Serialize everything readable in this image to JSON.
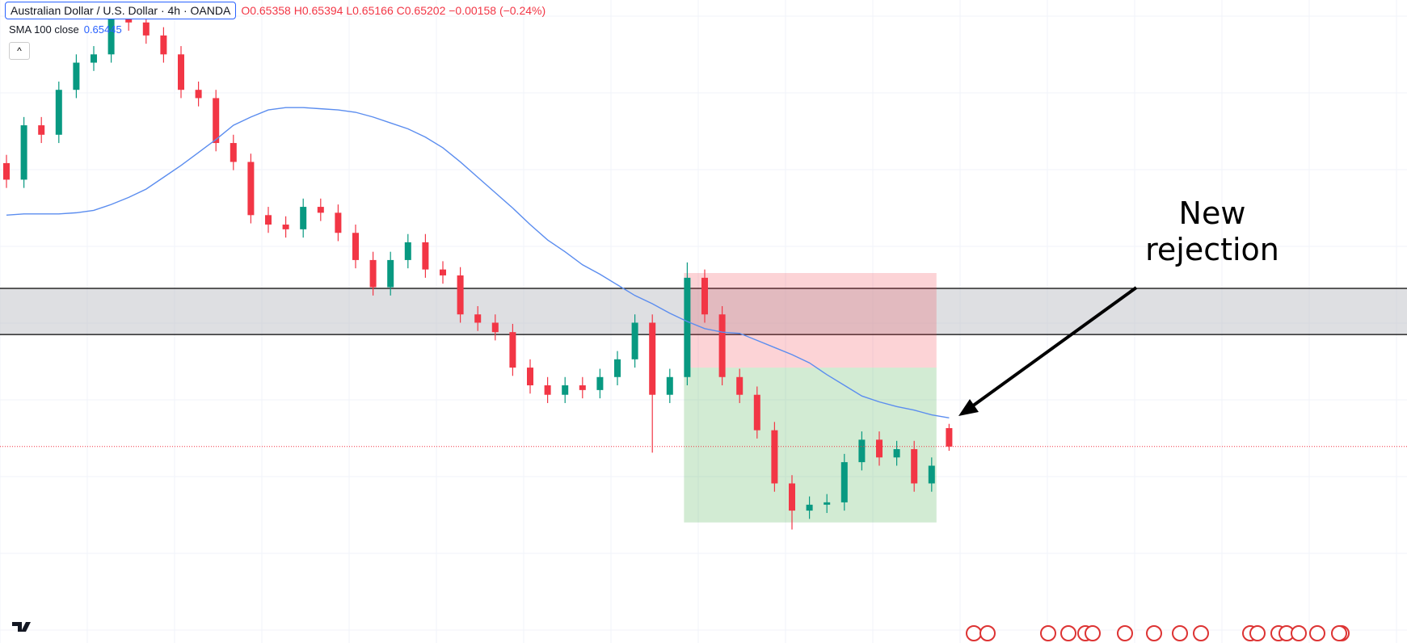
{
  "chart_data": {
    "type": "candlestick",
    "header": {
      "symbol": "Australian Dollar / U.S. Dollar · 4h · OANDA",
      "ohlc_labels": [
        "O",
        "H",
        "L",
        "C"
      ],
      "change": "−0.00158",
      "change_pct": "(−0.24%)",
      "indicator": "SMA 100 close"
    },
    "ylim": [
      0.6354,
      0.6898
    ],
    "up_color": "#089981",
    "down_color": "#f23645",
    "open": [
      0.676,
      0.6746,
      0.6792,
      0.6784,
      0.6822,
      0.6845,
      0.6852,
      0.6883,
      0.6879,
      0.6868,
      0.6852,
      0.6822,
      0.6815,
      0.6777,
      0.6761,
      0.6716,
      0.6708,
      0.6704,
      0.6723,
      0.6718,
      0.6701,
      0.6678,
      0.6655,
      0.6678,
      0.6693,
      0.667,
      0.6665,
      0.6632,
      0.6625,
      0.6617,
      0.6587,
      0.6572,
      0.6564,
      0.6572,
      0.6568,
      0.6579,
      0.6594,
      0.6625,
      0.6564,
      0.6579,
      0.6663,
      0.6632,
      0.6579,
      0.6564,
      0.6534,
      0.6489,
      0.6466,
      0.6471,
      0.6473,
      0.6507,
      0.6526,
      0.6511,
      0.6518,
      0.6489,
      0.65358
    ],
    "high": [
      0.6767,
      0.6799,
      0.6799,
      0.6829,
      0.6852,
      0.6859,
      0.689,
      0.689,
      0.6886,
      0.6875,
      0.6859,
      0.6829,
      0.6822,
      0.6784,
      0.6768,
      0.6723,
      0.6715,
      0.673,
      0.673,
      0.6725,
      0.6708,
      0.6685,
      0.6685,
      0.67,
      0.67,
      0.6677,
      0.6672,
      0.6639,
      0.6632,
      0.6624,
      0.6594,
      0.6579,
      0.6579,
      0.6579,
      0.6586,
      0.6601,
      0.6632,
      0.6632,
      0.6586,
      0.6676,
      0.667,
      0.6639,
      0.6586,
      0.6571,
      0.6541,
      0.6496,
      0.6478,
      0.648,
      0.6514,
      0.6533,
      0.6533,
      0.6525,
      0.6525,
      0.6511,
      0.65394
    ],
    "low": [
      0.6739,
      0.6739,
      0.6777,
      0.6777,
      0.6815,
      0.6838,
      0.6845,
      0.6872,
      0.6861,
      0.6845,
      0.6815,
      0.6808,
      0.677,
      0.6754,
      0.6709,
      0.6701,
      0.6697,
      0.6697,
      0.6711,
      0.6694,
      0.6671,
      0.6648,
      0.6648,
      0.6671,
      0.6663,
      0.6658,
      0.6625,
      0.6618,
      0.661,
      0.658,
      0.6565,
      0.6557,
      0.6557,
      0.6561,
      0.6561,
      0.6572,
      0.6587,
      0.6515,
      0.6557,
      0.6572,
      0.6625,
      0.6572,
      0.6557,
      0.6527,
      0.6482,
      0.645,
      0.6459,
      0.6464,
      0.6466,
      0.65,
      0.6504,
      0.6504,
      0.6482,
      0.6482,
      0.65166
    ],
    "close": [
      0.6746,
      0.6792,
      0.6784,
      0.6822,
      0.6845,
      0.6852,
      0.6883,
      0.6879,
      0.6868,
      0.6852,
      0.6822,
      0.6815,
      0.6777,
      0.6761,
      0.6716,
      0.6708,
      0.6704,
      0.6723,
      0.6718,
      0.6701,
      0.6678,
      0.6655,
      0.6678,
      0.6693,
      0.667,
      0.6665,
      0.6632,
      0.6625,
      0.6617,
      0.6587,
      0.6572,
      0.6564,
      0.6572,
      0.6568,
      0.6579,
      0.6594,
      0.6625,
      0.6564,
      0.6579,
      0.6663,
      0.6632,
      0.6579,
      0.6564,
      0.6534,
      0.6489,
      0.6466,
      0.6471,
      0.6473,
      0.6507,
      0.6526,
      0.6511,
      0.6518,
      0.6489,
      0.6504,
      0.65202
    ],
    "sma": {
      "color": "#5b8def",
      "values": [
        0.6716,
        0.6717,
        0.6717,
        0.6717,
        0.6718,
        0.672,
        0.6725,
        0.6731,
        0.6738,
        0.6748,
        0.6758,
        0.6769,
        0.678,
        0.6792,
        0.6799,
        0.6805,
        0.6807,
        0.6807,
        0.6806,
        0.6805,
        0.6803,
        0.6799,
        0.6794,
        0.6789,
        0.6782,
        0.6773,
        0.6761,
        0.6748,
        0.6735,
        0.6722,
        0.6708,
        0.6695,
        0.6685,
        0.6674,
        0.6666,
        0.6657,
        0.6648,
        0.6641,
        0.6633,
        0.6626,
        0.662,
        0.6617,
        0.6616,
        0.661,
        0.6604,
        0.6598,
        0.6591,
        0.6581,
        0.6572,
        0.6563,
        0.6558,
        0.6554,
        0.6551,
        0.6547,
        0.65445
      ]
    },
    "zone": [
      0.6654,
      0.6615
    ],
    "position": {
      "start": 39,
      "end": 53,
      "stop": 0.6667,
      "entry": 0.6587,
      "target": 0.6456
    },
    "annotation": [
      "New",
      "rejection"
    ]
  }
}
